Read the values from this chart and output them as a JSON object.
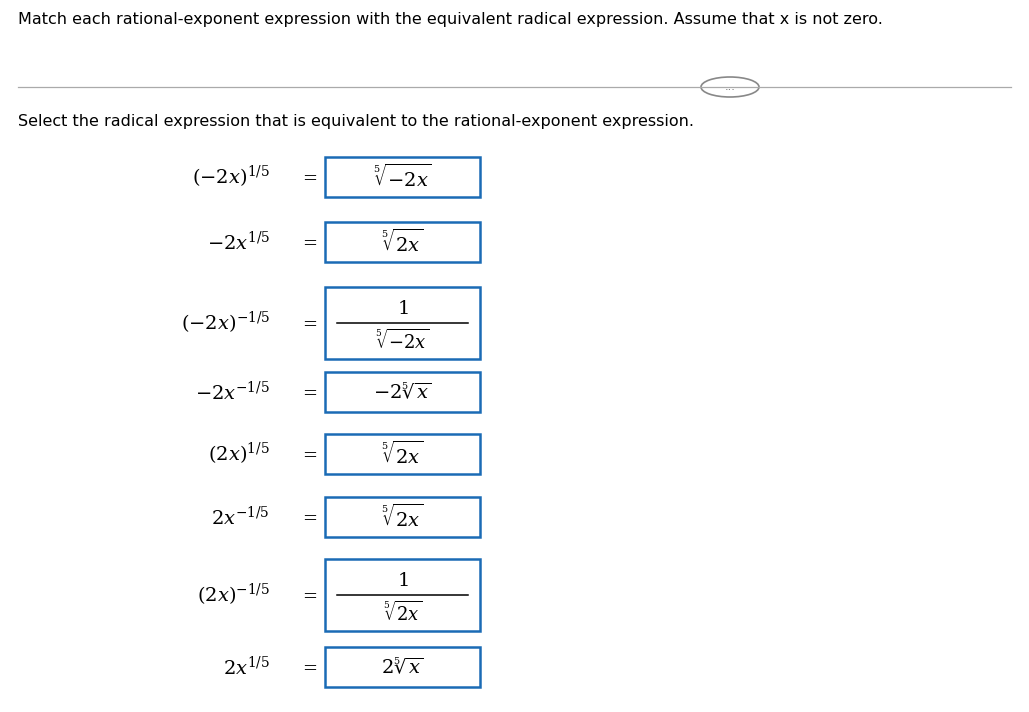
{
  "bg_color": "#ffffff",
  "title_text": "Match each rational-exponent expression with the equivalent radical expression. Assume that x is not zero.",
  "subtitle_text": "Select the radical expression that is equivalent to the rational-exponent expression.",
  "box_color": "#1a6bb5",
  "text_color": "#000000",
  "rows": [
    {
      "lhs": "(-2x)^{1/5}",
      "rhs_frac": false,
      "rhs": "\\sqrt[5]{-2x}",
      "rhs_num": "",
      "rhs_den": ""
    },
    {
      "lhs": "-2x^{1/5}",
      "rhs_frac": false,
      "rhs": "\\sqrt[5]{2x}",
      "rhs_num": "",
      "rhs_den": ""
    },
    {
      "lhs": "(-2x)^{-1/5}",
      "rhs_frac": true,
      "rhs": "",
      "rhs_num": "1",
      "rhs_den": "\\sqrt[5]{-2x}"
    },
    {
      "lhs": "-2x^{-1/5}",
      "rhs_frac": false,
      "rhs": "-2\\sqrt[5]{x}",
      "rhs_num": "",
      "rhs_den": ""
    },
    {
      "lhs": "(2x)^{1/5}",
      "rhs_frac": false,
      "rhs": "\\sqrt[5]{2x}",
      "rhs_num": "",
      "rhs_den": ""
    },
    {
      "lhs": "2x^{-1/5}",
      "rhs_frac": false,
      "rhs": "\\sqrt[5]{2x}",
      "rhs_num": "",
      "rhs_den": ""
    },
    {
      "lhs": "(2x)^{-1/5}",
      "rhs_frac": true,
      "rhs": "",
      "rhs_num": "1",
      "rhs_den": "\\sqrt[5]{2x}"
    },
    {
      "lhs": "2x^{1/5}",
      "rhs_frac": false,
      "rhs": "2\\sqrt[5]{x}",
      "rhs_num": "",
      "rhs_den": ""
    }
  ]
}
